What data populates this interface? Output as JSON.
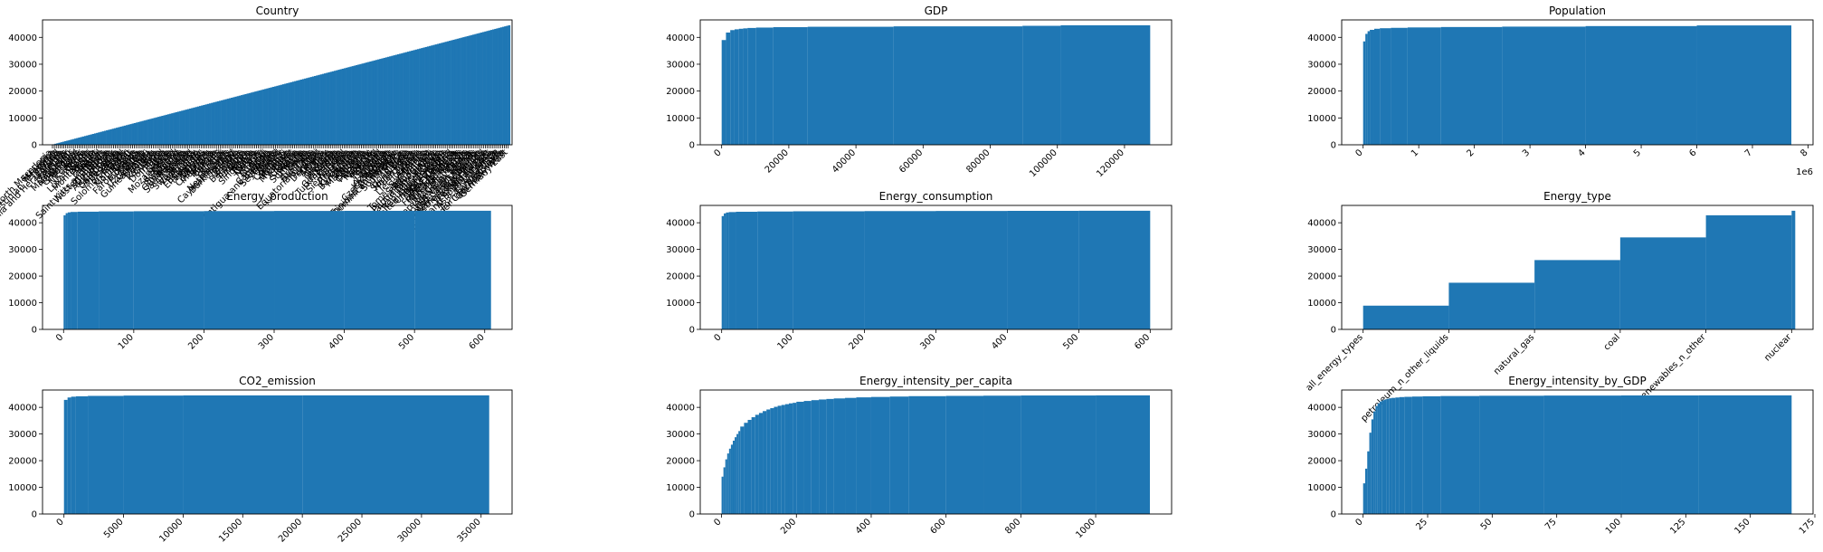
{
  "figure": {
    "bar_color": "#1f77b4"
  },
  "chart_data": [
    {
      "type": "bar",
      "title": "Country",
      "cumulative": true,
      "xlim": [
        -5,
        232
      ],
      "ylim": [
        0,
        46500
      ],
      "yticks": [
        0,
        10000,
        20000,
        30000,
        40000
      ],
      "x_tick_labels": [
        "North Macedonia",
        "Sri Lanka",
        "Morocco",
        "Palestinian Territories",
        "World",
        "Estonia",
        "Bosnia and Herzegovina",
        "Austria",
        "Mauritius",
        "Niger",
        "Tajikistan",
        "Madagascar",
        "Mauritania",
        "Hungary",
        "Greenland",
        "Laos",
        "Ecuador",
        "Nicaragua",
        "Belize",
        "Tonga",
        "Luxembourg",
        "Hawaii",
        "Montenegro",
        "Angola",
        "Kuwait",
        "Jamaica",
        "Nepal",
        "Bhutan",
        "Saint Kitts and Nevis",
        "Western Sahara",
        "Zimbabwe",
        "Sudan",
        "Afghanistan",
        "Germany",
        "Saint Lucia",
        "Cape Verde",
        "Bermuda",
        "Samoa",
        "Senegal",
        "Solomon Islands",
        "Qatar",
        "Cameroon",
        "Montserrat",
        "Russia",
        "Oman",
        "Faroe Islands",
        "Mongolia",
        "Eritrea",
        "Spain",
        "Uzbekistan",
        "Gibraltar",
        "Guinea-Bissau",
        "Uganda",
        "Bolivia",
        "Peru",
        "Romania",
        "Guinea",
        "Togo",
        "Dominica",
        "Ireland",
        "Iraq",
        "Syria",
        "Gabon",
        "Mozambique",
        "Lebanon",
        "Chad",
        "Kosovo",
        "Swaziland",
        "Philippines",
        "Guadeloupe",
        "Rwanda",
        "Saudi Arabia",
        "Ghana",
        "Yemen",
        "Switzerland",
        "Venezuela",
        "Uruguay",
        "Iran",
        "Botswana",
        "El Salvador",
        "Honduras",
        "Panama",
        "Guyana",
        "Vanuatu",
        "Costa Rica",
        "Indonesia",
        "Algeria",
        "Bahrain",
        "Belarus",
        "Brunei",
        "Fiji",
        "Kiribati",
        "Belgium",
        "Netherlands",
        "Cayman Islands",
        "Burkina Faso",
        "Iceland",
        "Malawi",
        "Lesotho",
        "Cuba",
        "Barbados",
        "Sweden",
        "Libya",
        "Tanzania",
        "Mexico",
        "Aruba",
        "Singapore",
        "Tunisia",
        "Latvia",
        "Greece",
        "Norway",
        "Nauru",
        "Haiti",
        "Burundi",
        "Japan",
        "Cambodia",
        "Antigua and Barbuda",
        "Ethiopia",
        "Seychelles",
        "Finland",
        "Poland",
        "Turkey",
        "Comoros",
        "Djibouti",
        "Moldova",
        "Reunion",
        "Myanmar",
        "Egypt",
        "Serbia",
        "Ukraine",
        "Slovakia",
        "Kenya",
        "Suriname",
        "Croatia",
        "Benin",
        "India",
        "Australia",
        "Bahamas",
        "Chile",
        "Equatorial Guinea",
        "Mali",
        "Portugal",
        "Denmark",
        "Liberia",
        "Albania",
        "Italy",
        "France",
        "Georgia",
        "Grenada",
        "Armenia",
        "Jordan",
        "Guatemala",
        "Turkmenistan",
        "Canada",
        "Israel",
        "Namibia",
        "Sierra Leone",
        "Argentina",
        "China",
        "Gambia",
        "Kyrgyzstan",
        "Bangladesh",
        "Zambia",
        "Martinique",
        "Nigeria",
        "Slovenia",
        "Colombia",
        "Paraguay",
        "Cyprus",
        "Malaysia",
        "Vietnam",
        "Brazil",
        "Pakistan",
        "Thailand",
        "Somalia",
        "Malta",
        "Lithuania",
        "Azerbaijan",
        "Kazakhstan",
        "Czech Republic",
        "Bulgaria",
        "Trinidad and Tobago",
        "Dominican Republic",
        "Maldives",
        "South Africa",
        "Niue",
        "Macau",
        "Hong Kong",
        "Taiwan",
        "South Korea",
        "North Korea",
        "Puerto Rico",
        "Tuvalu",
        "Palau",
        "Liechtenstein",
        "Andorra",
        "Monaco",
        "San Marino",
        "Sao Tome and Principe",
        "Saint Vincent",
        "Timor-Leste",
        "Papua New Guinea",
        "Central African Republic",
        "Cote d'Ivoire",
        "Congo",
        "Republic of Congo",
        "South Sudan",
        "United Arab Emirates",
        "United Kingdom",
        "United States",
        "New Zealand",
        "New Caledonia",
        "French Guiana",
        "French Polynesia",
        "Falkland Islands",
        "Cook Islands",
        "Marshall Islands",
        "Micronesia",
        "Northern Mariana Islands",
        "Guam",
        "American Samoa",
        "British Virgin Islands",
        "US Virgin Islands",
        "Turks and Caicos Islands",
        "Anguilla",
        "Saint Pierre and Miquelon",
        "Netherlands Antilles",
        "Wake Island",
        "Western Europe",
        "Eastern Europe",
        "Middle East",
        "Central and South America",
        "Asia and Oceania",
        "Africa",
        "Antarctica",
        "Former USSR",
        "Former Yugoslavia",
        "Former Czechoslovakia",
        "Germany West",
        "Germany East"
      ],
      "bins": 231,
      "values_first": 193,
      "values_last": 44500
    },
    {
      "type": "bar",
      "title": "GDP",
      "cumulative": true,
      "xlim": [
        -6381,
        134031
      ],
      "ylim": [
        0,
        46500
      ],
      "xticks": [
        0,
        20000,
        40000,
        60000,
        80000,
        100000,
        120000
      ],
      "yticks": [
        0,
        10000,
        20000,
        30000,
        40000
      ],
      "bin_edges": [
        0,
        1280,
        2560,
        3840,
        5120,
        6400,
        7680,
        10240,
        15360,
        25600,
        51200,
        89600,
        101000,
        127650
      ],
      "cumulative_counts": [
        39000,
        41800,
        42700,
        43000,
        43200,
        43350,
        43500,
        43650,
        43800,
        43950,
        44100,
        44300,
        44500
      ]
    },
    {
      "type": "bar",
      "title": "Population",
      "cumulative": true,
      "x_offset_label": "1e6",
      "xlim": [
        -0.3855,
        8.09
      ],
      "ylim": [
        0,
        46500
      ],
      "xticks": [
        0,
        1,
        2,
        3,
        4,
        5,
        6,
        7,
        8
      ],
      "yticks": [
        0,
        10000,
        20000,
        30000,
        40000
      ],
      "bin_edges": [
        0,
        0.04,
        0.08,
        0.12,
        0.2,
        0.3,
        0.5,
        0.8,
        1.4,
        2.5,
        4.0,
        6.0,
        7.7
      ],
      "cumulative_counts": [
        38500,
        41300,
        42300,
        42800,
        43200,
        43400,
        43550,
        43700,
        43850,
        44000,
        44200,
        44450
      ]
    },
    {
      "type": "bar",
      "title": "Energy_production",
      "cumulative": true,
      "xlim": [
        -30,
        639
      ],
      "ylim": [
        0,
        46500
      ],
      "xticks": [
        0,
        100,
        200,
        300,
        400,
        500,
        600
      ],
      "yticks": [
        0,
        10000,
        20000,
        30000,
        40000
      ],
      "bin_edges": [
        0,
        3,
        6,
        10,
        20,
        50,
        100,
        200,
        300,
        400,
        500,
        609
      ],
      "cumulative_counts": [
        42800,
        43600,
        43900,
        44050,
        44150,
        44250,
        44320,
        44380,
        44430,
        44470,
        44500
      ]
    },
    {
      "type": "bar",
      "title": "Energy_consumption",
      "cumulative": true,
      "xlim": [
        -30,
        630
      ],
      "ylim": [
        0,
        46500
      ],
      "xticks": [
        0,
        100,
        200,
        300,
        400,
        500,
        600
      ],
      "yticks": [
        0,
        10000,
        20000,
        30000,
        40000
      ],
      "bin_edges": [
        0,
        3,
        6,
        10,
        20,
        50,
        100,
        200,
        300,
        400,
        500,
        600
      ],
      "cumulative_counts": [
        42500,
        43500,
        43850,
        44000,
        44120,
        44220,
        44300,
        44370,
        44420,
        44460,
        44500
      ]
    },
    {
      "type": "bar",
      "title": "Energy_type",
      "cumulative": true,
      "xlim": [
        -0.25,
        5.25
      ],
      "ylim": [
        0,
        46500
      ],
      "yticks": [
        0,
        10000,
        20000,
        30000,
        40000
      ],
      "categories": [
        "all_energy_types",
        "petroleum_n_other_liquids",
        "natural_gas",
        "coal",
        "renewables_n_other",
        "nuclear"
      ],
      "cumulative_counts": [
        8900,
        17500,
        26000,
        34500,
        42800,
        44500
      ]
    },
    {
      "type": "bar",
      "title": "CO2_emission",
      "cumulative": true,
      "xlim": [
        -1800,
        37600
      ],
      "ylim": [
        0,
        46500
      ],
      "xticks": [
        0,
        5000,
        10000,
        15000,
        20000,
        25000,
        30000,
        35000
      ],
      "yticks": [
        0,
        10000,
        20000,
        30000,
        40000
      ],
      "bin_edges": [
        0,
        300,
        600,
        1000,
        2000,
        5000,
        10000,
        20000,
        35681
      ],
      "cumulative_counts": [
        42800,
        43700,
        44000,
        44150,
        44300,
        44420,
        44480,
        44500
      ]
    },
    {
      "type": "bar",
      "title": "Energy_intensity_per_capita",
      "cumulative": true,
      "xlim": [
        -57,
        1203
      ],
      "ylim": [
        0,
        46500
      ],
      "xticks": [
        0,
        200,
        400,
        600,
        800,
        1000
      ],
      "yticks": [
        0,
        10000,
        20000,
        30000,
        40000
      ],
      "bin_edges": [
        0,
        5,
        10,
        15,
        20,
        25,
        30,
        35,
        40,
        45,
        50,
        60,
        70,
        80,
        90,
        100,
        110,
        120,
        130,
        140,
        150,
        160,
        170,
        180,
        190,
        200,
        220,
        240,
        260,
        280,
        300,
        330,
        360,
        400,
        450,
        500,
        600,
        700,
        800,
        1000,
        1145
      ],
      "cumulative_counts": [
        14000,
        17500,
        20500,
        22700,
        24500,
        26000,
        27500,
        28800,
        30000,
        31100,
        32800,
        34200,
        35300,
        36300,
        37200,
        37900,
        38600,
        39200,
        39700,
        40200,
        40600,
        40900,
        41200,
        41500,
        41700,
        42100,
        42400,
        42700,
        42950,
        43150,
        43350,
        43550,
        43750,
        43900,
        44050,
        44200,
        44300,
        44380,
        44450,
        44500
      ]
    },
    {
      "type": "bar",
      "title": "Energy_intensity_by_GDP",
      "cumulative": true,
      "xlim": [
        -8.3,
        174.3
      ],
      "ylim": [
        0,
        46500
      ],
      "xticks": [
        0,
        25,
        50,
        75,
        100,
        125,
        150,
        175
      ],
      "yticks": [
        0,
        10000,
        20000,
        30000,
        40000
      ],
      "bin_edges": [
        0,
        0.8,
        1.6,
        2.4,
        3.2,
        4.0,
        4.8,
        5.6,
        6.4,
        7.2,
        8.0,
        9.0,
        10.0,
        11.0,
        12.5,
        14,
        16,
        19,
        23,
        30,
        45,
        70,
        100,
        130,
        166
      ],
      "cumulative_counts": [
        11500,
        17000,
        23500,
        30500,
        35500,
        38500,
        40500,
        41500,
        42200,
        42600,
        42900,
        43200,
        43400,
        43550,
        43700,
        43850,
        43950,
        44050,
        44150,
        44250,
        44350,
        44420,
        44470,
        44500
      ]
    }
  ]
}
